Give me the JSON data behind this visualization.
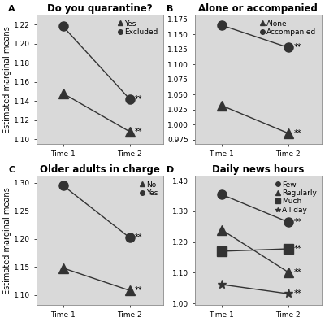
{
  "panel_A": {
    "title": "Do you quarantine?",
    "label": "A",
    "x": [
      1,
      2
    ],
    "xtick_labels": [
      "Time 1",
      "Time 2"
    ],
    "series": [
      {
        "label": "Yes",
        "values": [
          1.148,
          1.108
        ],
        "marker": "^"
      },
      {
        "label": "Excluded",
        "values": [
          1.218,
          1.142
        ],
        "marker": "o"
      }
    ],
    "ylim": [
      1.095,
      1.23
    ],
    "yticks": [
      1.1,
      1.12,
      1.14,
      1.16,
      1.18,
      1.2,
      1.22
    ],
    "ytick_labels": [
      "1.10",
      "1.12",
      "1.14",
      "1.16",
      "1.18",
      "1.20",
      "1.22"
    ],
    "stars": [
      {
        "xi": 1,
        "yi": 1,
        "series_i": 1,
        "text": "**"
      },
      {
        "xi": 1,
        "yi": 1,
        "series_i": 0,
        "text": "**"
      }
    ]
  },
  "panel_B": {
    "title": "Alone or accompanied",
    "label": "B",
    "x": [
      1,
      2
    ],
    "xtick_labels": [
      "Time 1",
      "Time 2"
    ],
    "series": [
      {
        "label": "Alone",
        "values": [
          1.032,
          0.986
        ],
        "marker": "^"
      },
      {
        "label": "Accompanied",
        "values": [
          1.165,
          1.128
        ],
        "marker": "o"
      }
    ],
    "ylim": [
      0.968,
      1.182
    ],
    "yticks": [
      0.975,
      1.0,
      1.025,
      1.05,
      1.075,
      1.1,
      1.125,
      1.15,
      1.175
    ],
    "ytick_labels": [
      "0.975",
      "1.000",
      "1.025",
      "1.050",
      "1.075",
      "1.100",
      "1.125",
      "1.150",
      "1.175"
    ],
    "stars": [
      {
        "xi": 1,
        "yi": 1,
        "series_i": 1,
        "text": "**"
      },
      {
        "xi": 1,
        "yi": 1,
        "series_i": 0,
        "text": "**"
      }
    ]
  },
  "panel_C": {
    "title": "Older adults in charge",
    "label": "C",
    "x": [
      1,
      2
    ],
    "xtick_labels": [
      "Time 1",
      "Time 2"
    ],
    "series": [
      {
        "label": "No",
        "values": [
          1.148,
          1.108
        ],
        "marker": "^"
      },
      {
        "label": "Yes",
        "values": [
          1.295,
          1.202
        ],
        "marker": "o"
      }
    ],
    "ylim": [
      1.082,
      1.312
    ],
    "yticks": [
      1.1,
      1.15,
      1.2,
      1.25,
      1.3
    ],
    "ytick_labels": [
      "1.10",
      "1.15",
      "1.20",
      "1.25",
      "1.30"
    ],
    "stars": [
      {
        "xi": 1,
        "yi": 1,
        "series_i": 1,
        "text": "**"
      },
      {
        "xi": 1,
        "yi": 1,
        "series_i": 0,
        "text": "**"
      }
    ]
  },
  "panel_D": {
    "title": "Daily news hours",
    "label": "D",
    "x": [
      1,
      2
    ],
    "xtick_labels": [
      "Time 1",
      "Time 2"
    ],
    "series": [
      {
        "label": "Few",
        "values": [
          1.355,
          1.265
        ],
        "marker": "o"
      },
      {
        "label": "Regularly",
        "values": [
          1.24,
          1.102
        ],
        "marker": "^"
      },
      {
        "label": "Much",
        "values": [
          1.17,
          1.178
        ],
        "marker": "s"
      },
      {
        "label": "All day",
        "values": [
          1.062,
          1.032
        ],
        "marker": "*"
      }
    ],
    "ylim": [
      0.995,
      1.415
    ],
    "yticks": [
      1.0,
      1.1,
      1.2,
      1.3,
      1.4
    ],
    "ytick_labels": [
      "1.00",
      "1.10",
      "1.20",
      "1.30",
      "1.40"
    ],
    "stars": [
      {
        "xi": 1,
        "yi": 1,
        "series_i": 0,
        "text": "**"
      },
      {
        "xi": 1,
        "yi": 1,
        "series_i": 1,
        "text": "**"
      },
      {
        "xi": 1,
        "yi": 1,
        "series_i": 2,
        "text": "**"
      },
      {
        "xi": 1,
        "yi": 1,
        "series_i": 3,
        "text": "**"
      }
    ]
  },
  "bg_color": "#d9d9d9",
  "marker_color": "#333333",
  "marker_size": 8,
  "ylabel": "Estimated marginal means",
  "fontsize_title": 8.5,
  "fontsize_ylabel": 7,
  "fontsize_tick": 6.5,
  "fontsize_legend": 6.5,
  "fontsize_stars": 7,
  "fontsize_panel_label": 8
}
